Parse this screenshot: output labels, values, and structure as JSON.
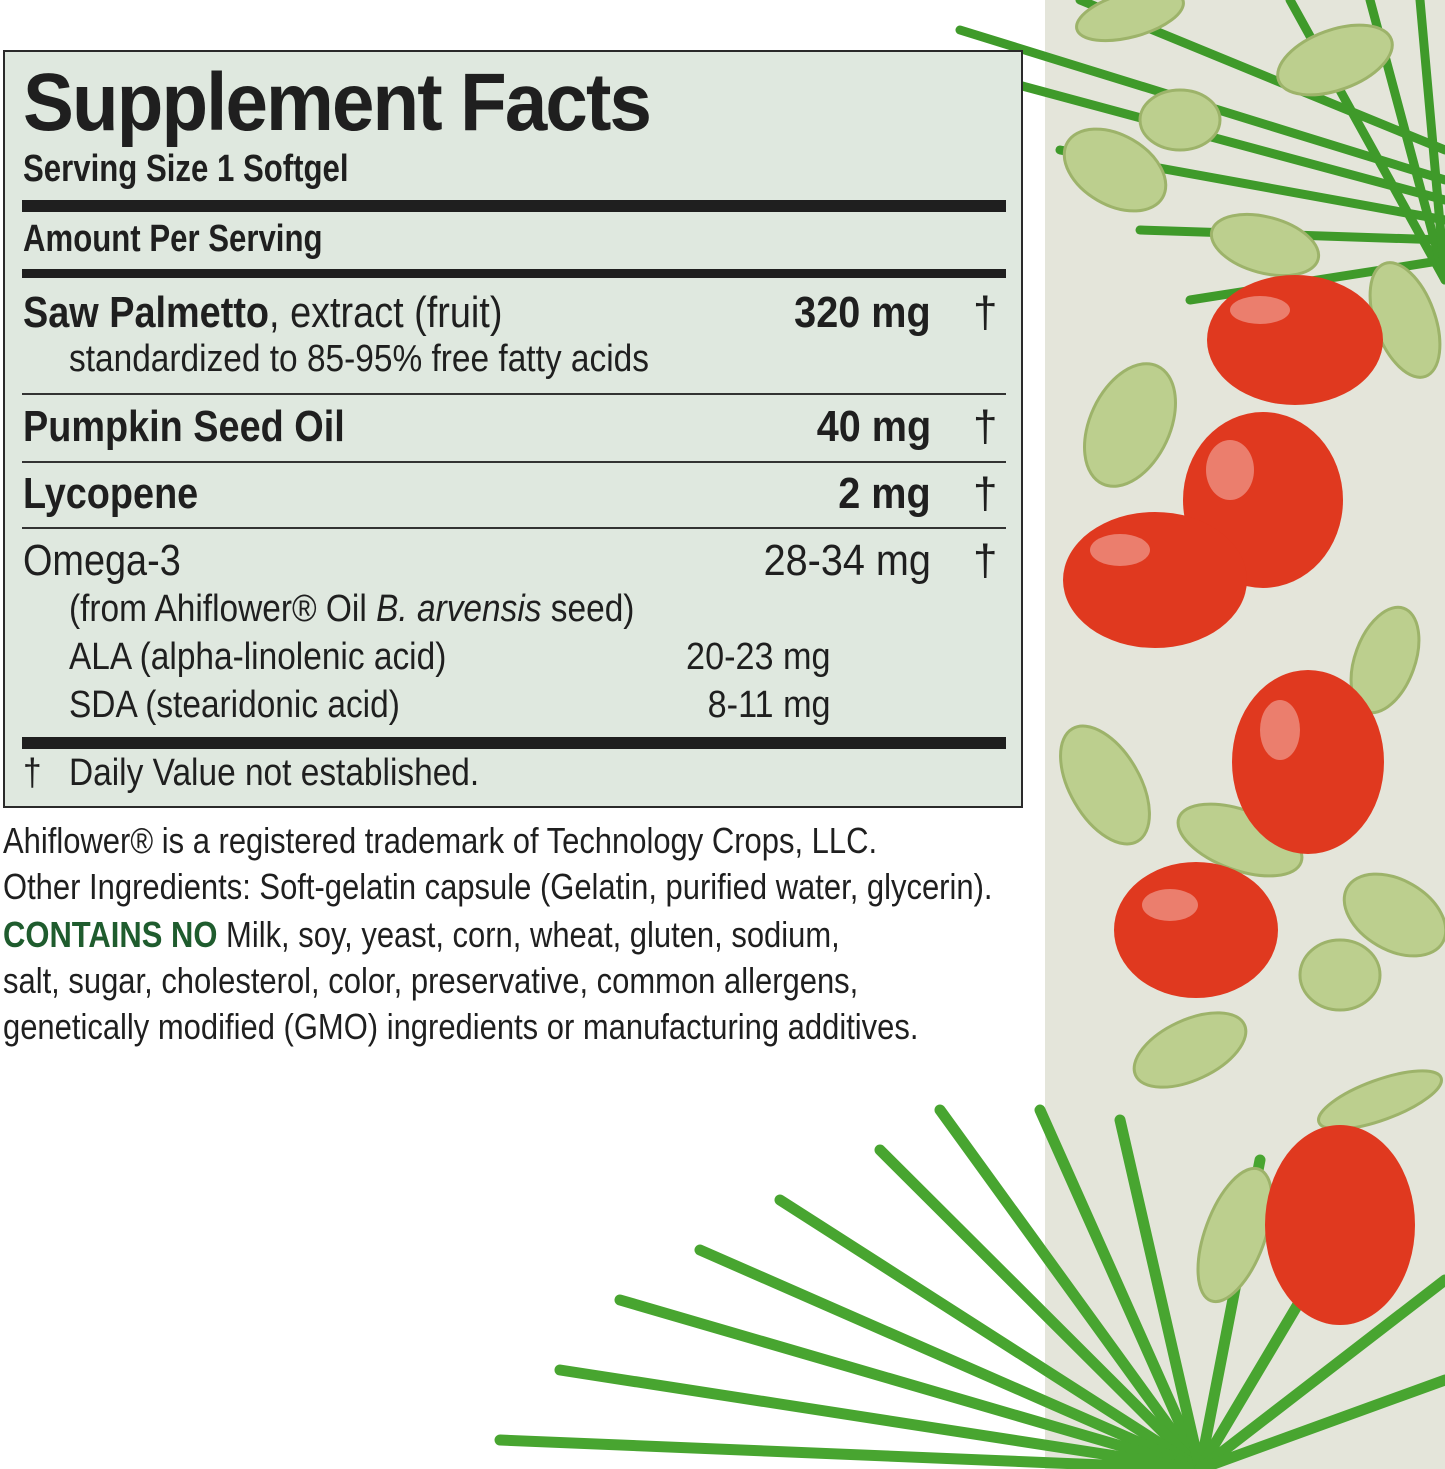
{
  "panel": {
    "title": "Supplement Facts",
    "serving_size": "Serving Size 1 Softgel",
    "amount_header": "Amount Per Serving",
    "rows": [
      {
        "name": "Saw Palmetto",
        "desc": ", extract (fruit)",
        "amount": "320 mg",
        "dv": "†",
        "sub": "standardized to 85-95% free fatty acids"
      },
      {
        "name": "Pumpkin Seed Oil",
        "amount": "40 mg",
        "dv": "†"
      },
      {
        "name": "Lycopene",
        "amount": "2 mg",
        "dv": "†"
      },
      {
        "name": "Omega-3",
        "amount": "28-34 mg",
        "dv": "†",
        "source_prefix": "(from Ahiflower® Oil ",
        "source_italic": "B. arvensis",
        "source_suffix": " seed)",
        "subs": [
          {
            "name": "ALA (alpha-linolenic acid)",
            "amount": "20-23 mg"
          },
          {
            "name": "SDA (stearidonic acid)",
            "amount": "8-11 mg"
          }
        ]
      }
    ],
    "footnote_symbol": "†",
    "footnote": "Daily Value not established."
  },
  "notes": {
    "trademark": "Ahiflower® is a registered trademark of Technology Crops, LLC.",
    "other_ingredients": "Other Ingredients: Soft-gelatin capsule (Gelatin, purified water, glycerin).",
    "contains_no_label": "CONTAINS NO",
    "contains_no_line1": " Milk, soy, yeast, corn, wheat, gluten, sodium,",
    "contains_no_line2": "salt, sugar, cholesterol, color, preservative, common allergens,",
    "contains_no_line3": "genetically modified (GMO) ingredients or manufacturing additives."
  },
  "colors": {
    "panel_bg": "#dfe8df",
    "accent_green": "#1f5c2e",
    "strip_bg": "#e4e5da",
    "berry_red": "#e0391f",
    "leaf_green": "#3f9a2a",
    "seed": "#bccf8e"
  }
}
